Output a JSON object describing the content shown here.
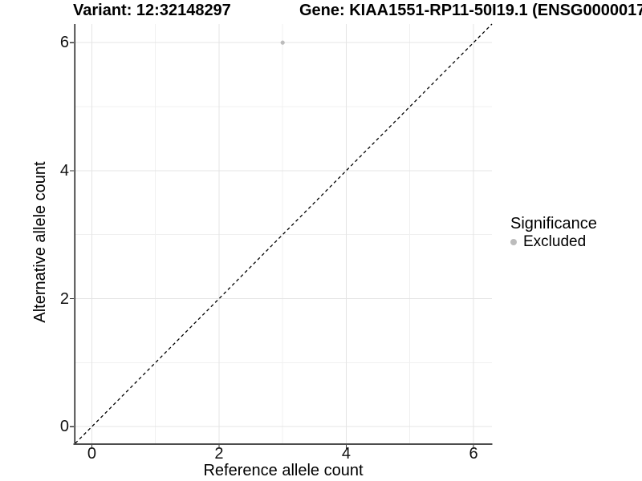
{
  "titles": {
    "variant": "Variant: 12:32148297",
    "gene": "Gene: KIAA1551-RP11-50I19.1 (ENSG0000017"
  },
  "legend": {
    "title": "Significance",
    "items": [
      {
        "label": "Excluded",
        "color": "#bcbcbc"
      }
    ]
  },
  "colors": {
    "point": "#bcbcbc",
    "grid_major": "#e4e4e4",
    "grid_minor": "#f0f0f0",
    "axis_line_left": "#1a1a1a",
    "axis_line_bottom": "#4d4d4d",
    "tick_mark": "#333333",
    "reference_line": "#000000",
    "background": "#ffffff"
  },
  "chart_data": {
    "type": "scatter",
    "title": "Variant: 12:32148297   |   Gene: KIAA1551-RP11-50I19.1 (ENSG0000017",
    "xlabel": "Reference allele count",
    "ylabel": "Alternative allele count",
    "xlim": [
      -0.27,
      6.29
    ],
    "ylim": [
      -0.26,
      6.29
    ],
    "x_ticks": [
      0,
      2,
      4,
      6
    ],
    "y_ticks": [
      0,
      2,
      4,
      6
    ],
    "x_minor_gridlines": [
      1,
      3,
      5
    ],
    "y_minor_gridlines": [
      1,
      3,
      5
    ],
    "grid": true,
    "legend_position": "right",
    "legend_title": "Significance",
    "series": [
      {
        "name": "Excluded",
        "color": "#bcbcbc",
        "points": [
          [
            3,
            6
          ]
        ]
      }
    ],
    "reference_line": {
      "kind": "identity y=x",
      "style": "dashed",
      "color": "#000000"
    }
  }
}
